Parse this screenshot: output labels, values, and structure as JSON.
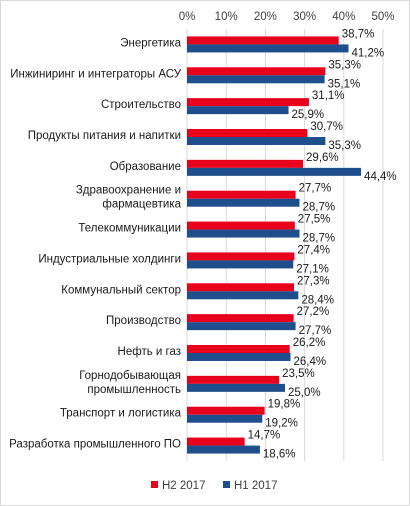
{
  "chart_data": {
    "type": "bar",
    "orientation": "horizontal",
    "title": "",
    "xlabel": "",
    "ylabel": "",
    "xlim": [
      0,
      50
    ],
    "ticks": [
      "0%",
      "10%",
      "20%",
      "30%",
      "40%",
      "50%"
    ],
    "grid": true,
    "legend_position": "bottom",
    "categories": [
      [
        "Энергетика"
      ],
      [
        "Инжиниринг и интеграторы АСУ"
      ],
      [
        "Строительство"
      ],
      [
        "Продукты питания и напитки"
      ],
      [
        "Образование"
      ],
      [
        "Здравоохранение и",
        "фармацевтика"
      ],
      [
        "Телекоммуникации"
      ],
      [
        "Индустриальные холдинги"
      ],
      [
        "Коммунальный сектор"
      ],
      [
        "Производство"
      ],
      [
        "Нефть и газ"
      ],
      [
        "Горнодобывающая",
        "промышленность"
      ],
      [
        "Транспорт  и логистика"
      ],
      [
        "Разработка  промышленного ПО"
      ]
    ],
    "series": [
      {
        "name": "H2 2017",
        "color": "#e8001c",
        "values": [
          38.7,
          35.3,
          31.1,
          30.7,
          29.6,
          27.7,
          27.5,
          27.4,
          27.3,
          27.2,
          26.2,
          23.5,
          19.8,
          14.7
        ],
        "labels": [
          "38,7%",
          "35,3%",
          "31,1%",
          "30,7%",
          "29,6%",
          "27,7%",
          "27,5%",
          "27,4%",
          "27,3%",
          "27,2%",
          "26,2%",
          "23,5%",
          "19,8%",
          "14,7%"
        ]
      },
      {
        "name": "H1 2017",
        "color": "#1f4e8c",
        "values": [
          41.2,
          35.1,
          25.9,
          35.3,
          44.4,
          28.7,
          28.7,
          27.1,
          28.4,
          27.7,
          26.4,
          25.0,
          19.2,
          18.6
        ],
        "labels": [
          "41,2%",
          "35,1%",
          "25,9%",
          "35,3%",
          "44,4%",
          "28,7%",
          "28,7%",
          "27,1%",
          "28,4%",
          "27,7%",
          "26,4%",
          "25,0%",
          "19,2%",
          "18,6%"
        ]
      }
    ]
  }
}
